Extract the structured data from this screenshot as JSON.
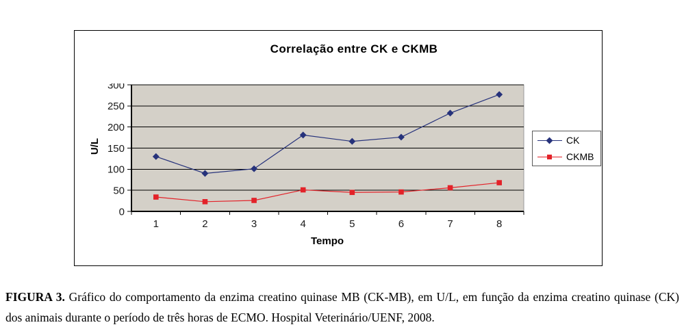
{
  "chart_data": {
    "type": "line",
    "title": "Correlação entre CK e CKMB",
    "xlabel": "Tempo",
    "ylabel": "U/L",
    "categories": [
      "1",
      "2",
      "3",
      "4",
      "5",
      "6",
      "7",
      "8"
    ],
    "series": [
      {
        "name": "CK",
        "color": "#26327b",
        "marker": "diamond",
        "values": [
          130,
          90,
          101,
          181,
          166,
          176,
          233,
          277
        ]
      },
      {
        "name": "CKMB",
        "color": "#e32229",
        "marker": "square",
        "values": [
          34,
          23,
          26,
          51,
          45,
          46,
          56,
          68
        ]
      }
    ],
    "ylim": [
      0,
      300
    ],
    "ytick_step": 50,
    "grid": true,
    "legend_position": "right",
    "plot_bg_color": "#d4d0c8",
    "gridline_color": "#000000",
    "marker_names": [
      "diamond-marker-icon",
      "square-marker-icon"
    ]
  },
  "caption": {
    "label": "FIGURA 3.",
    "text": " Gráfico do comportamento da enzima creatino quinase MB (CK-MB), em U/L, em função da enzima creatino quinase (CK) dos animais durante o período de três horas de ECMO. Hospital Veterinário/UENF, 2008."
  }
}
